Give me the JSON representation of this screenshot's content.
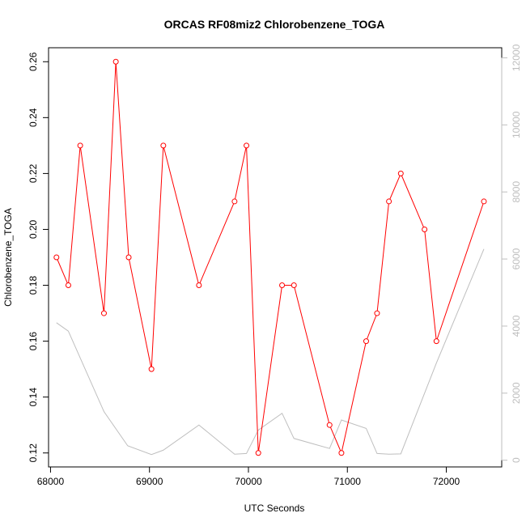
{
  "chart_data": {
    "type": "line",
    "title": "ORCAS RF08miz2 Chlorobenzene_TOGA",
    "xlabel": "UTC Seconds",
    "ylabel": "Chlorobenzene_TOGA",
    "xlim": [
      67980,
      72560
    ],
    "ylim": [
      0.115,
      0.265
    ],
    "y2lim": [
      -200,
      12300
    ],
    "x_ticks": [
      68000,
      69000,
      70000,
      71000,
      72000
    ],
    "y_ticks": [
      0.12,
      0.14,
      0.16,
      0.18,
      0.2,
      0.22,
      0.24,
      0.26
    ],
    "y2_ticks": [
      0,
      2000,
      4000,
      6000,
      8000,
      10000,
      12000
    ],
    "grid": false,
    "colors": {
      "primary": "#ff0000",
      "secondary": "#bebebe",
      "axis": "#000000"
    },
    "series": [
      {
        "axis": "left",
        "style": "line+points",
        "x": [
          68060,
          68180,
          68300,
          68540,
          68660,
          68790,
          69020,
          69140,
          69500,
          69860,
          69980,
          70100,
          70340,
          70460,
          70820,
          70940,
          71190,
          71300,
          71420,
          71540,
          71780,
          71900,
          72380
        ],
        "y": [
          0.19,
          0.18,
          0.23,
          0.17,
          0.26,
          0.19,
          0.15,
          0.23,
          0.18,
          0.21,
          0.23,
          0.12,
          0.18,
          0.18,
          0.13,
          0.12,
          0.16,
          0.17,
          0.21,
          0.22,
          0.2,
          0.16,
          0.21
        ]
      },
      {
        "axis": "right",
        "style": "line",
        "x": [
          68060,
          68180,
          68540,
          68780,
          69020,
          69140,
          69500,
          69860,
          69980,
          70100,
          70340,
          70460,
          70820,
          70940,
          71190,
          71300,
          71420,
          71540,
          71900,
          72380
        ],
        "y": [
          4100,
          3850,
          1450,
          430,
          170,
          300,
          1050,
          180,
          200,
          900,
          1400,
          650,
          350,
          1200,
          950,
          200,
          180,
          190,
          2900,
          6300
        ]
      }
    ]
  }
}
